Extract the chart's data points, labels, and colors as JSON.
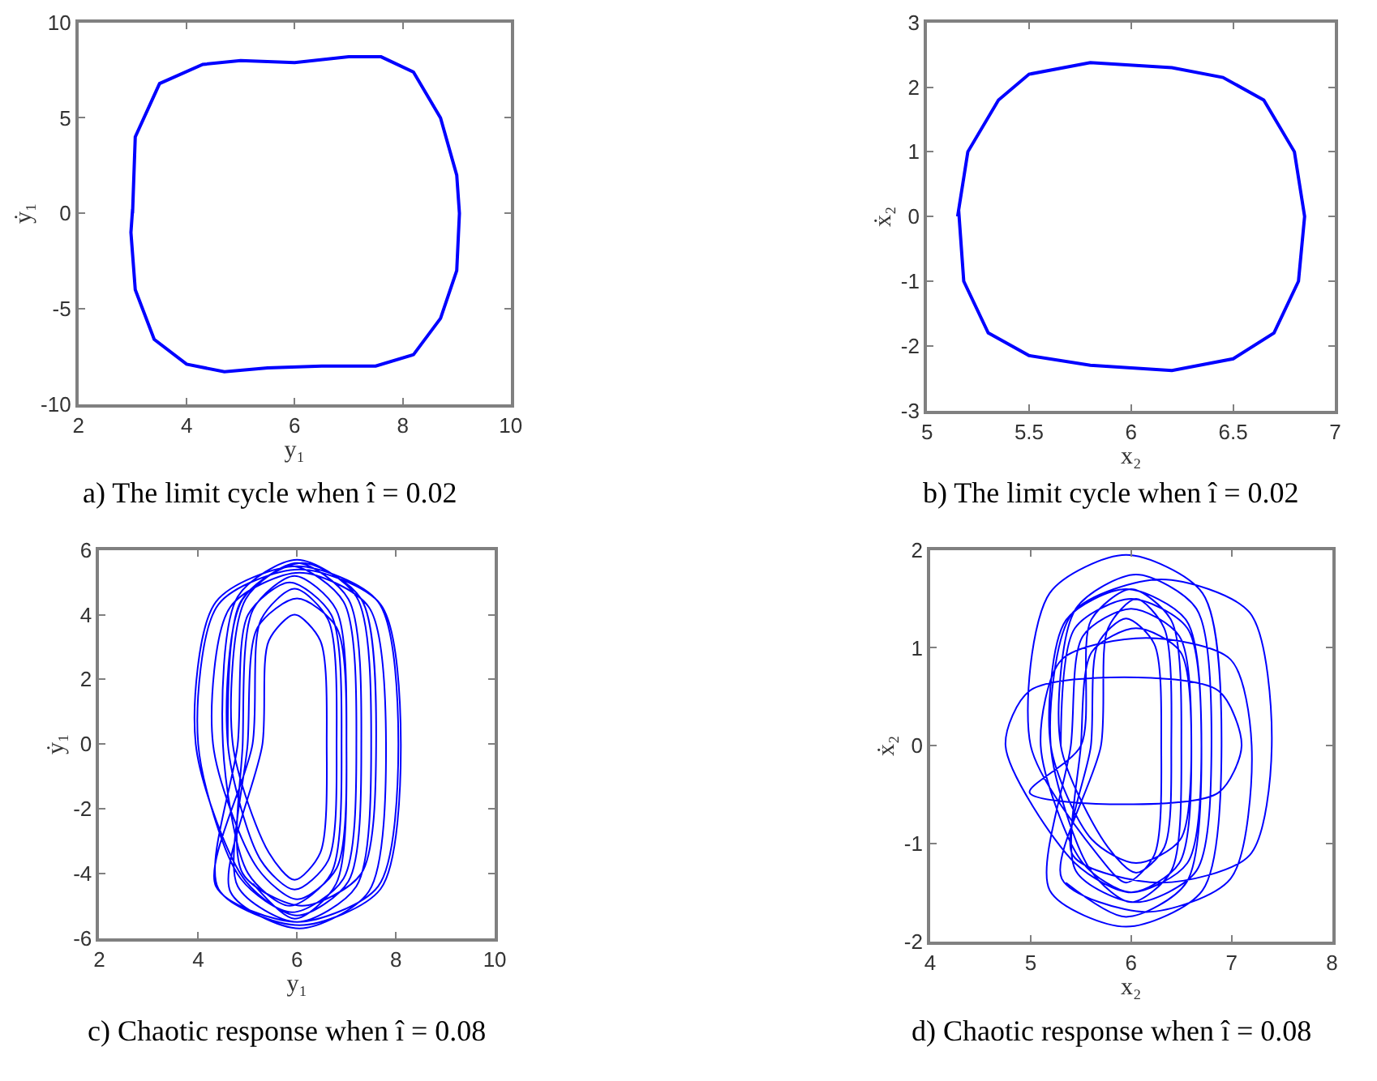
{
  "chart_data": [
    {
      "type": "line",
      "title": "a) The limit cycle when î = 0.02",
      "xlabel": "y₁",
      "ylabel": "ẏ₁",
      "xlim": [
        2,
        10
      ],
      "xticks": [
        2,
        4,
        6,
        8,
        10
      ],
      "ylim": [
        -10,
        10
      ],
      "yticks": [
        -10,
        -5,
        0,
        5,
        10
      ],
      "marker": "none",
      "line_style": "solid",
      "series": [
        {
          "color": "#0000ff",
          "x": [
            3.0,
            3.05,
            3.5,
            4.3,
            5.0,
            6.0,
            7.0,
            7.6,
            8.2,
            8.7,
            9.0,
            9.05,
            9.0,
            8.7,
            8.2,
            7.5,
            6.5,
            5.5,
            4.7,
            4.0,
            3.4,
            3.05,
            2.97,
            3.0
          ],
          "values": [
            0,
            4,
            6.8,
            7.8,
            8.0,
            7.9,
            8.2,
            8.2,
            7.4,
            5,
            2,
            0,
            -3,
            -5.5,
            -7.4,
            -8.0,
            -8.0,
            -8.1,
            -8.3,
            -7.9,
            -6.6,
            -4,
            -1,
            0.2
          ]
        }
      ]
    },
    {
      "type": "line",
      "title": "b) The limit cycle when î = 0.02",
      "xlabel": "x₂",
      "ylabel": "ẋ₂",
      "xlim": [
        5,
        7
      ],
      "xticks": [
        5,
        5.5,
        6,
        6.5,
        7
      ],
      "ylim": [
        -3,
        3
      ],
      "yticks": [
        -3,
        -2,
        -1,
        0,
        1,
        2,
        3
      ],
      "marker": "none",
      "line_style": "solid",
      "series": [
        {
          "color": "#0000ff",
          "x": [
            5.15,
            5.2,
            5.35,
            5.5,
            5.8,
            6.2,
            6.45,
            6.65,
            6.8,
            6.85,
            6.82,
            6.7,
            6.5,
            6.2,
            5.8,
            5.5,
            5.3,
            5.18,
            5.155
          ],
          "values": [
            0,
            1.0,
            1.8,
            2.2,
            2.38,
            2.3,
            2.15,
            1.8,
            1.0,
            0,
            -1.0,
            -1.8,
            -2.2,
            -2.38,
            -2.3,
            -2.15,
            -1.8,
            -1.0,
            0.1
          ]
        }
      ]
    },
    {
      "type": "line",
      "title": "c) Chaotic response when î = 0.08",
      "xlabel": "y₁",
      "ylabel": "ẏ₁",
      "xlim": [
        2,
        10
      ],
      "xticks": [
        2,
        4,
        6,
        8,
        10
      ],
      "ylim": [
        -6,
        6
      ],
      "yticks": [
        -6,
        -4,
        -2,
        0,
        2,
        4,
        6
      ],
      "marker": "none",
      "line_style": "solid",
      "series": [
        {
          "color": "#0000ff",
          "x": [
            4.6,
            4.86,
            5.9,
            6.94,
            7.2,
            6.94,
            5.9,
            4.86,
            4.0,
            4.41,
            6.05,
            7.69,
            8.1,
            7.69,
            6.05,
            4.41,
            4.8,
            5.01,
            5.85,
            6.69,
            6.9,
            6.69,
            5.85,
            5.01,
            4.5,
            4.8,
            6.0,
            7.2,
            7.5,
            7.2,
            6.0,
            4.8,
            5.0,
            5.2,
            6.0,
            6.8,
            7.0,
            6.8,
            6.0,
            5.2,
            4.3,
            4.65,
            6.05,
            7.45,
            7.8,
            7.45,
            6.05,
            4.65,
            5.3,
            5.43,
            5.95,
            6.47,
            6.6,
            6.47,
            5.95,
            5.43,
            4.7,
            4.96,
            6.0,
            7.04,
            7.3,
            7.04,
            6.0,
            4.96,
            3.95,
            4.36,
            6.0,
            7.64,
            8.05,
            7.64,
            6.0,
            4.36,
            5.1,
            5.27,
            5.95,
            6.63,
            6.8,
            6.63,
            5.95,
            5.27,
            4.6,
            4.9,
            6.1,
            7.3,
            7.6,
            7.3,
            6.1,
            4.9,
            4.9,
            5.11,
            5.95,
            6.79,
            7.0,
            6.79,
            5.95,
            5.11
          ],
          "values": [
            0,
            4.4,
            5.5,
            4.4,
            0,
            -4.16,
            -5.2,
            -4.16,
            0,
            4.32,
            5.4,
            4.32,
            0,
            -4.48,
            -5.6,
            -4.48,
            0,
            4.0,
            5.0,
            4.0,
            0,
            -4.0,
            -5.0,
            -4.0,
            0,
            4.56,
            5.7,
            4.56,
            0,
            -4.4,
            -5.5,
            -4.4,
            0,
            3.6,
            4.5,
            3.6,
            0,
            -3.84,
            -4.8,
            -3.84,
            0,
            4.24,
            5.3,
            4.24,
            0,
            -4.56,
            -5.7,
            -4.56,
            0,
            3.2,
            4.0,
            3.2,
            0,
            -3.36,
            -4.2,
            -3.36,
            0,
            4.48,
            5.6,
            4.48,
            0,
            -4.24,
            -5.3,
            -4.24,
            0,
            4.4,
            5.5,
            4.4,
            0,
            -4.4,
            -5.5,
            -4.4,
            0,
            3.84,
            4.8,
            3.84,
            0,
            -3.6,
            -4.5,
            -3.6,
            0,
            4.48,
            5.6,
            4.48,
            0,
            -4.0,
            -5.0,
            -4.0,
            0,
            4.16,
            5.2,
            4.16,
            0,
            -4.32,
            -5.4,
            -4.32
          ]
        }
      ]
    },
    {
      "type": "line",
      "title": "d) Chaotic response when î = 0.08",
      "xlabel": "x₂",
      "ylabel": "ẋ₂",
      "xlim": [
        4,
        8
      ],
      "xticks": [
        4,
        5,
        6,
        7,
        8
      ],
      "ylim": [
        -2,
        2
      ],
      "yticks": [
        -2,
        -1,
        0,
        1,
        2
      ],
      "marker": "none",
      "line_style": "solid",
      "series": [
        {
          "color": "#0000ff",
          "x": [
            5.3,
            5.44,
            6.0,
            6.56,
            6.7,
            6.56,
            6.0,
            5.44,
            4.75,
            4.99,
            5.93,
            6.87,
            7.1,
            6.87,
            5.93,
            4.99,
            5.5,
            5.6,
            6.0,
            6.4,
            6.5,
            6.4,
            6.0,
            5.6,
            5.2,
            5.42,
            6.3,
            7.18,
            7.4,
            7.18,
            6.3,
            5.42,
            5.6,
            5.67,
            5.95,
            6.23,
            6.3,
            6.23,
            5.95,
            5.67,
            5.0,
            5.19,
            5.95,
            6.71,
            6.9,
            6.71,
            5.95,
            5.19,
            5.4,
            5.52,
            6.0,
            6.48,
            6.6,
            6.48,
            6.0,
            5.52,
            5.1,
            5.31,
            6.15,
            6.99,
            7.2,
            6.99,
            6.15,
            5.31,
            5.7,
            5.77,
            6.05,
            6.33,
            6.4,
            6.33,
            6.05,
            5.77,
            5.3,
            5.45,
            6.05,
            6.65,
            6.8,
            6.65,
            6.05,
            5.45,
            5.5,
            5.61,
            6.05,
            6.49,
            6.6,
            6.49,
            6.05,
            5.61,
            5.2,
            5.35,
            5.95,
            6.55,
            6.7,
            6.55,
            5.95,
            5.35
          ],
          "values": [
            0,
            1.2,
            1.5,
            1.2,
            0,
            -1.2,
            -1.5,
            -1.2,
            0,
            0.56,
            0.7,
            0.56,
            0,
            -0.48,
            -0.6,
            -0.48,
            0,
            1.28,
            1.6,
            1.28,
            0,
            -1.28,
            -1.6,
            -1.28,
            0,
            1.36,
            1.7,
            1.36,
            0,
            -1.12,
            -1.4,
            -1.12,
            0,
            1.04,
            1.3,
            1.04,
            0,
            -1.12,
            -1.4,
            -1.12,
            0,
            1.56,
            1.95,
            1.56,
            0,
            -1.48,
            -1.85,
            -1.48,
            0,
            1.12,
            1.4,
            1.12,
            0,
            -1.2,
            -1.5,
            -1.2,
            0,
            0.88,
            1.1,
            0.88,
            0,
            -1.36,
            -1.7,
            -1.36,
            0,
            1.2,
            1.5,
            1.2,
            0,
            -1.04,
            -1.3,
            -1.04,
            0,
            1.4,
            1.75,
            1.4,
            0,
            -1.28,
            -1.6,
            -1.28,
            0,
            0.96,
            1.2,
            0.96,
            0,
            -0.96,
            -1.2,
            -0.96,
            0,
            1.28,
            1.6,
            1.28,
            0,
            -1.4,
            -1.75,
            -1.4
          ]
        }
      ]
    }
  ]
}
